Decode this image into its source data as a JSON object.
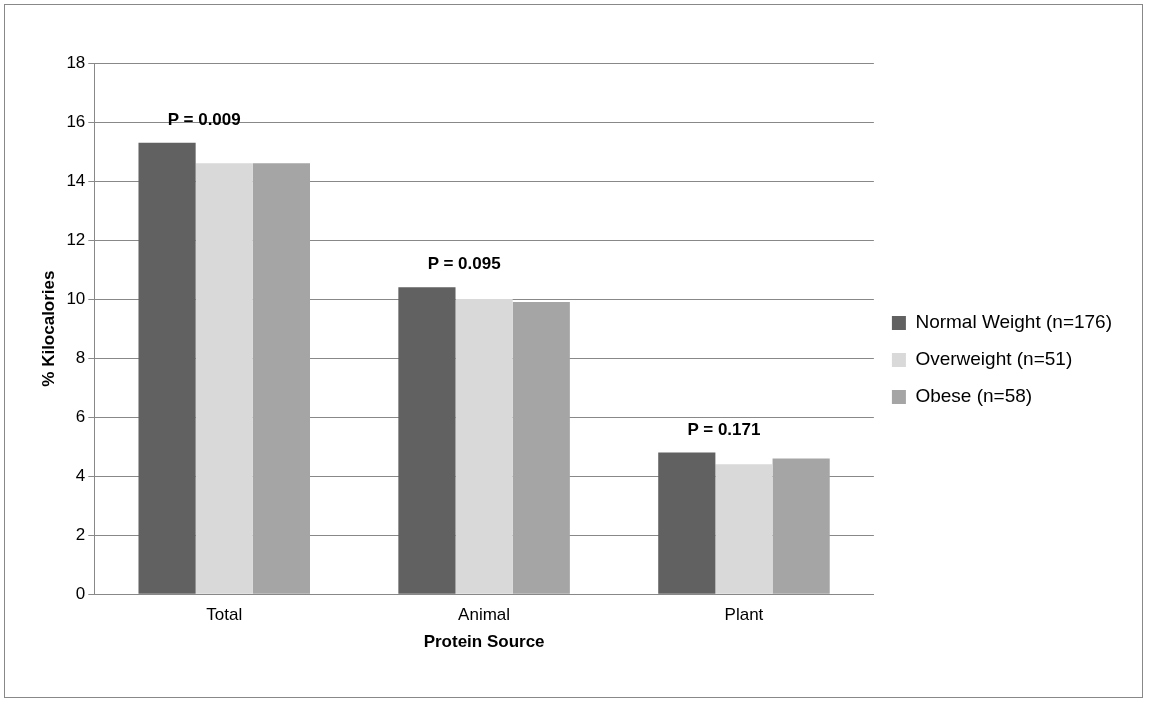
{
  "chart_data": {
    "type": "bar",
    "xlabel": "Protein Source",
    "ylabel": "% Kilocalories",
    "categories": [
      "Total",
      "Animal",
      "Plant"
    ],
    "series": [
      {
        "name": "Normal Weight (n=176)",
        "color": "#616161",
        "values": [
          15.3,
          10.4,
          4.8
        ]
      },
      {
        "name": "Overweight (n=51)",
        "color": "#d9d9d9",
        "values": [
          14.6,
          10.0,
          4.4
        ]
      },
      {
        "name": "Obese (n=58)",
        "color": "#a5a5a5",
        "values": [
          14.6,
          9.9,
          4.6
        ]
      }
    ],
    "ylim": [
      0,
      18
    ],
    "yticks": [
      0,
      2,
      4,
      6,
      8,
      10,
      12,
      14,
      16,
      18
    ],
    "grid": "y",
    "legend": "right",
    "annotations": [
      "P = 0.009",
      "P = 0.095",
      "P = 0.171"
    ]
  }
}
